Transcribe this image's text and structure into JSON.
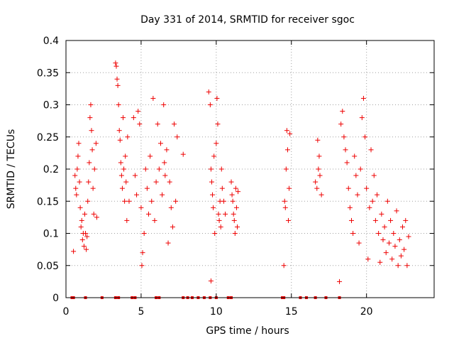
{
  "chart_data": {
    "type": "scatter",
    "title": "Day 331 of 2014, SRMTID for receiver sgoc",
    "xlabel": "GPS time / hours",
    "ylabel": "SRMTID / TECUs",
    "xlim": [
      0,
      24.5
    ],
    "ylim": [
      0,
      0.4
    ],
    "xticks": [
      0,
      5,
      10,
      15,
      20
    ],
    "xtick_labels": [
      "0",
      "5",
      "10",
      "15",
      "20"
    ],
    "yticks": [
      0,
      0.05,
      0.1,
      0.15,
      0.2,
      0.25,
      0.3,
      0.35,
      0.4
    ],
    "ytick_labels": [
      "0",
      "0.05",
      "0.1",
      "0.15",
      "0.2",
      "0.25",
      "0.3",
      "0.35",
      "0.4"
    ],
    "grid": true,
    "marker": "plus",
    "color": "#ee0000",
    "series": [
      {
        "name": "SRMTID",
        "points": [
          [
            0.5,
            0.072
          ],
          [
            0.6,
            0.19
          ],
          [
            0.65,
            0.17
          ],
          [
            0.7,
            0.16
          ],
          [
            0.75,
            0.2
          ],
          [
            0.8,
            0.22
          ],
          [
            0.85,
            0.24
          ],
          [
            0.9,
            0.18
          ],
          [
            0.95,
            0.14
          ],
          [
            1.0,
            0.11
          ],
          [
            1.05,
            0.12
          ],
          [
            1.1,
            0.09
          ],
          [
            1.15,
            0.1
          ],
          [
            1.2,
            0.08
          ],
          [
            1.25,
            0.13
          ],
          [
            1.3,
            0.1
          ],
          [
            1.35,
            0.075
          ],
          [
            1.4,
            0.095
          ],
          [
            1.45,
            0.15
          ],
          [
            1.5,
            0.18
          ],
          [
            1.55,
            0.21
          ],
          [
            1.6,
            0.28
          ],
          [
            1.65,
            0.3
          ],
          [
            1.7,
            0.26
          ],
          [
            1.75,
            0.23
          ],
          [
            1.8,
            0.17
          ],
          [
            1.85,
            0.13
          ],
          [
            1.9,
            0.2
          ],
          [
            2.0,
            0.24
          ],
          [
            2.05,
            0.125
          ],
          [
            3.3,
            0.365
          ],
          [
            3.35,
            0.36
          ],
          [
            3.4,
            0.34
          ],
          [
            3.45,
            0.33
          ],
          [
            3.5,
            0.3
          ],
          [
            3.55,
            0.26
          ],
          [
            3.6,
            0.245
          ],
          [
            3.65,
            0.21
          ],
          [
            3.7,
            0.19
          ],
          [
            3.75,
            0.17
          ],
          [
            3.8,
            0.28
          ],
          [
            3.85,
            0.2
          ],
          [
            3.9,
            0.15
          ],
          [
            3.95,
            0.22
          ],
          [
            4.0,
            0.18
          ],
          [
            4.05,
            0.12
          ],
          [
            4.1,
            0.25
          ],
          [
            4.2,
            0.15
          ],
          [
            4.5,
            0.28
          ],
          [
            4.6,
            0.19
          ],
          [
            4.7,
            0.16
          ],
          [
            4.8,
            0.29
          ],
          [
            4.9,
            0.27
          ],
          [
            5.0,
            0.14
          ],
          [
            5.05,
            0.05
          ],
          [
            5.1,
            0.07
          ],
          [
            5.2,
            0.1
          ],
          [
            5.3,
            0.2
          ],
          [
            5.4,
            0.17
          ],
          [
            5.5,
            0.13
          ],
          [
            5.6,
            0.22
          ],
          [
            5.7,
            0.15
          ],
          [
            5.8,
            0.31
          ],
          [
            5.9,
            0.12
          ],
          [
            6.0,
            0.18
          ],
          [
            6.1,
            0.27
          ],
          [
            6.2,
            0.2
          ],
          [
            6.3,
            0.24
          ],
          [
            6.4,
            0.16
          ],
          [
            6.5,
            0.3
          ],
          [
            6.55,
            0.21
          ],
          [
            6.6,
            0.19
          ],
          [
            6.7,
            0.23
          ],
          [
            6.8,
            0.085
          ],
          [
            6.9,
            0.18
          ],
          [
            7.0,
            0.14
          ],
          [
            7.1,
            0.11
          ],
          [
            7.2,
            0.27
          ],
          [
            7.3,
            0.15
          ],
          [
            7.4,
            0.25
          ],
          [
            7.8,
            0.223
          ],
          [
            9.5,
            0.32
          ],
          [
            9.6,
            0.3
          ],
          [
            9.65,
            0.2
          ],
          [
            9.7,
            0.18
          ],
          [
            9.75,
            0.16
          ],
          [
            9.8,
            0.14
          ],
          [
            9.85,
            0.22
          ],
          [
            9.9,
            0.1
          ],
          [
            10.0,
            0.24
          ],
          [
            10.05,
            0.31
          ],
          [
            10.1,
            0.27
          ],
          [
            10.15,
            0.13
          ],
          [
            10.2,
            0.12
          ],
          [
            10.25,
            0.15
          ],
          [
            10.3,
            0.11
          ],
          [
            10.35,
            0.2
          ],
          [
            10.4,
            0.17
          ],
          [
            10.5,
            0.15
          ],
          [
            10.6,
            0.13
          ],
          [
            9.65,
            0.026
          ],
          [
            11.0,
            0.18
          ],
          [
            11.05,
            0.16
          ],
          [
            11.1,
            0.15
          ],
          [
            11.15,
            0.13
          ],
          [
            11.2,
            0.12
          ],
          [
            11.25,
            0.1
          ],
          [
            11.3,
            0.17
          ],
          [
            11.35,
            0.14
          ],
          [
            11.4,
            0.11
          ],
          [
            11.45,
            0.165
          ],
          [
            14.5,
            0.05
          ],
          [
            14.55,
            0.15
          ],
          [
            14.6,
            0.14
          ],
          [
            14.65,
            0.2
          ],
          [
            14.7,
            0.26
          ],
          [
            14.75,
            0.23
          ],
          [
            14.8,
            0.12
          ],
          [
            14.85,
            0.17
          ],
          [
            14.9,
            0.255
          ],
          [
            16.6,
            0.18
          ],
          [
            16.7,
            0.17
          ],
          [
            16.8,
            0.2
          ],
          [
            16.9,
            0.19
          ],
          [
            17.0,
            0.16
          ],
          [
            16.75,
            0.245
          ],
          [
            16.85,
            0.22
          ],
          [
            18.2,
            0.025
          ],
          [
            18.3,
            0.27
          ],
          [
            18.4,
            0.29
          ],
          [
            18.5,
            0.25
          ],
          [
            18.6,
            0.23
          ],
          [
            18.7,
            0.21
          ],
          [
            18.8,
            0.17
          ],
          [
            18.9,
            0.14
          ],
          [
            19.0,
            0.12
          ],
          [
            19.1,
            0.1
          ],
          [
            19.2,
            0.22
          ],
          [
            19.3,
            0.19
          ],
          [
            19.4,
            0.16
          ],
          [
            19.5,
            0.085
          ],
          [
            19.6,
            0.2
          ],
          [
            19.7,
            0.28
          ],
          [
            19.8,
            0.31
          ],
          [
            19.9,
            0.25
          ],
          [
            20.0,
            0.17
          ],
          [
            20.1,
            0.06
          ],
          [
            20.2,
            0.14
          ],
          [
            20.3,
            0.23
          ],
          [
            20.4,
            0.15
          ],
          [
            20.5,
            0.19
          ],
          [
            20.6,
            0.12
          ],
          [
            20.7,
            0.16
          ],
          [
            20.8,
            0.1
          ],
          [
            20.9,
            0.055
          ],
          [
            21.0,
            0.13
          ],
          [
            21.1,
            0.09
          ],
          [
            21.2,
            0.11
          ],
          [
            21.3,
            0.07
          ],
          [
            21.4,
            0.15
          ],
          [
            21.5,
            0.085
          ],
          [
            21.6,
            0.12
          ],
          [
            21.7,
            0.06
          ],
          [
            21.8,
            0.1
          ],
          [
            21.9,
            0.08
          ],
          [
            22.0,
            0.135
          ],
          [
            22.1,
            0.05
          ],
          [
            22.2,
            0.09
          ],
          [
            22.3,
            0.065
          ],
          [
            22.4,
            0.11
          ],
          [
            22.5,
            0.075
          ],
          [
            22.6,
            0.12
          ],
          [
            22.7,
            0.05
          ],
          [
            22.8,
            0.095
          ]
        ]
      }
    ],
    "zero_markers_x": [
      0.4,
      0.5,
      1.3,
      2.4,
      3.3,
      3.5,
      4.4,
      4.6,
      6.0,
      6.2,
      7.8,
      8.1,
      8.4,
      8.8,
      9.2,
      9.6,
      10.0,
      10.8,
      11.0,
      14.4,
      14.5,
      15.6,
      16.0,
      16.6,
      17.3,
      18.2
    ]
  }
}
